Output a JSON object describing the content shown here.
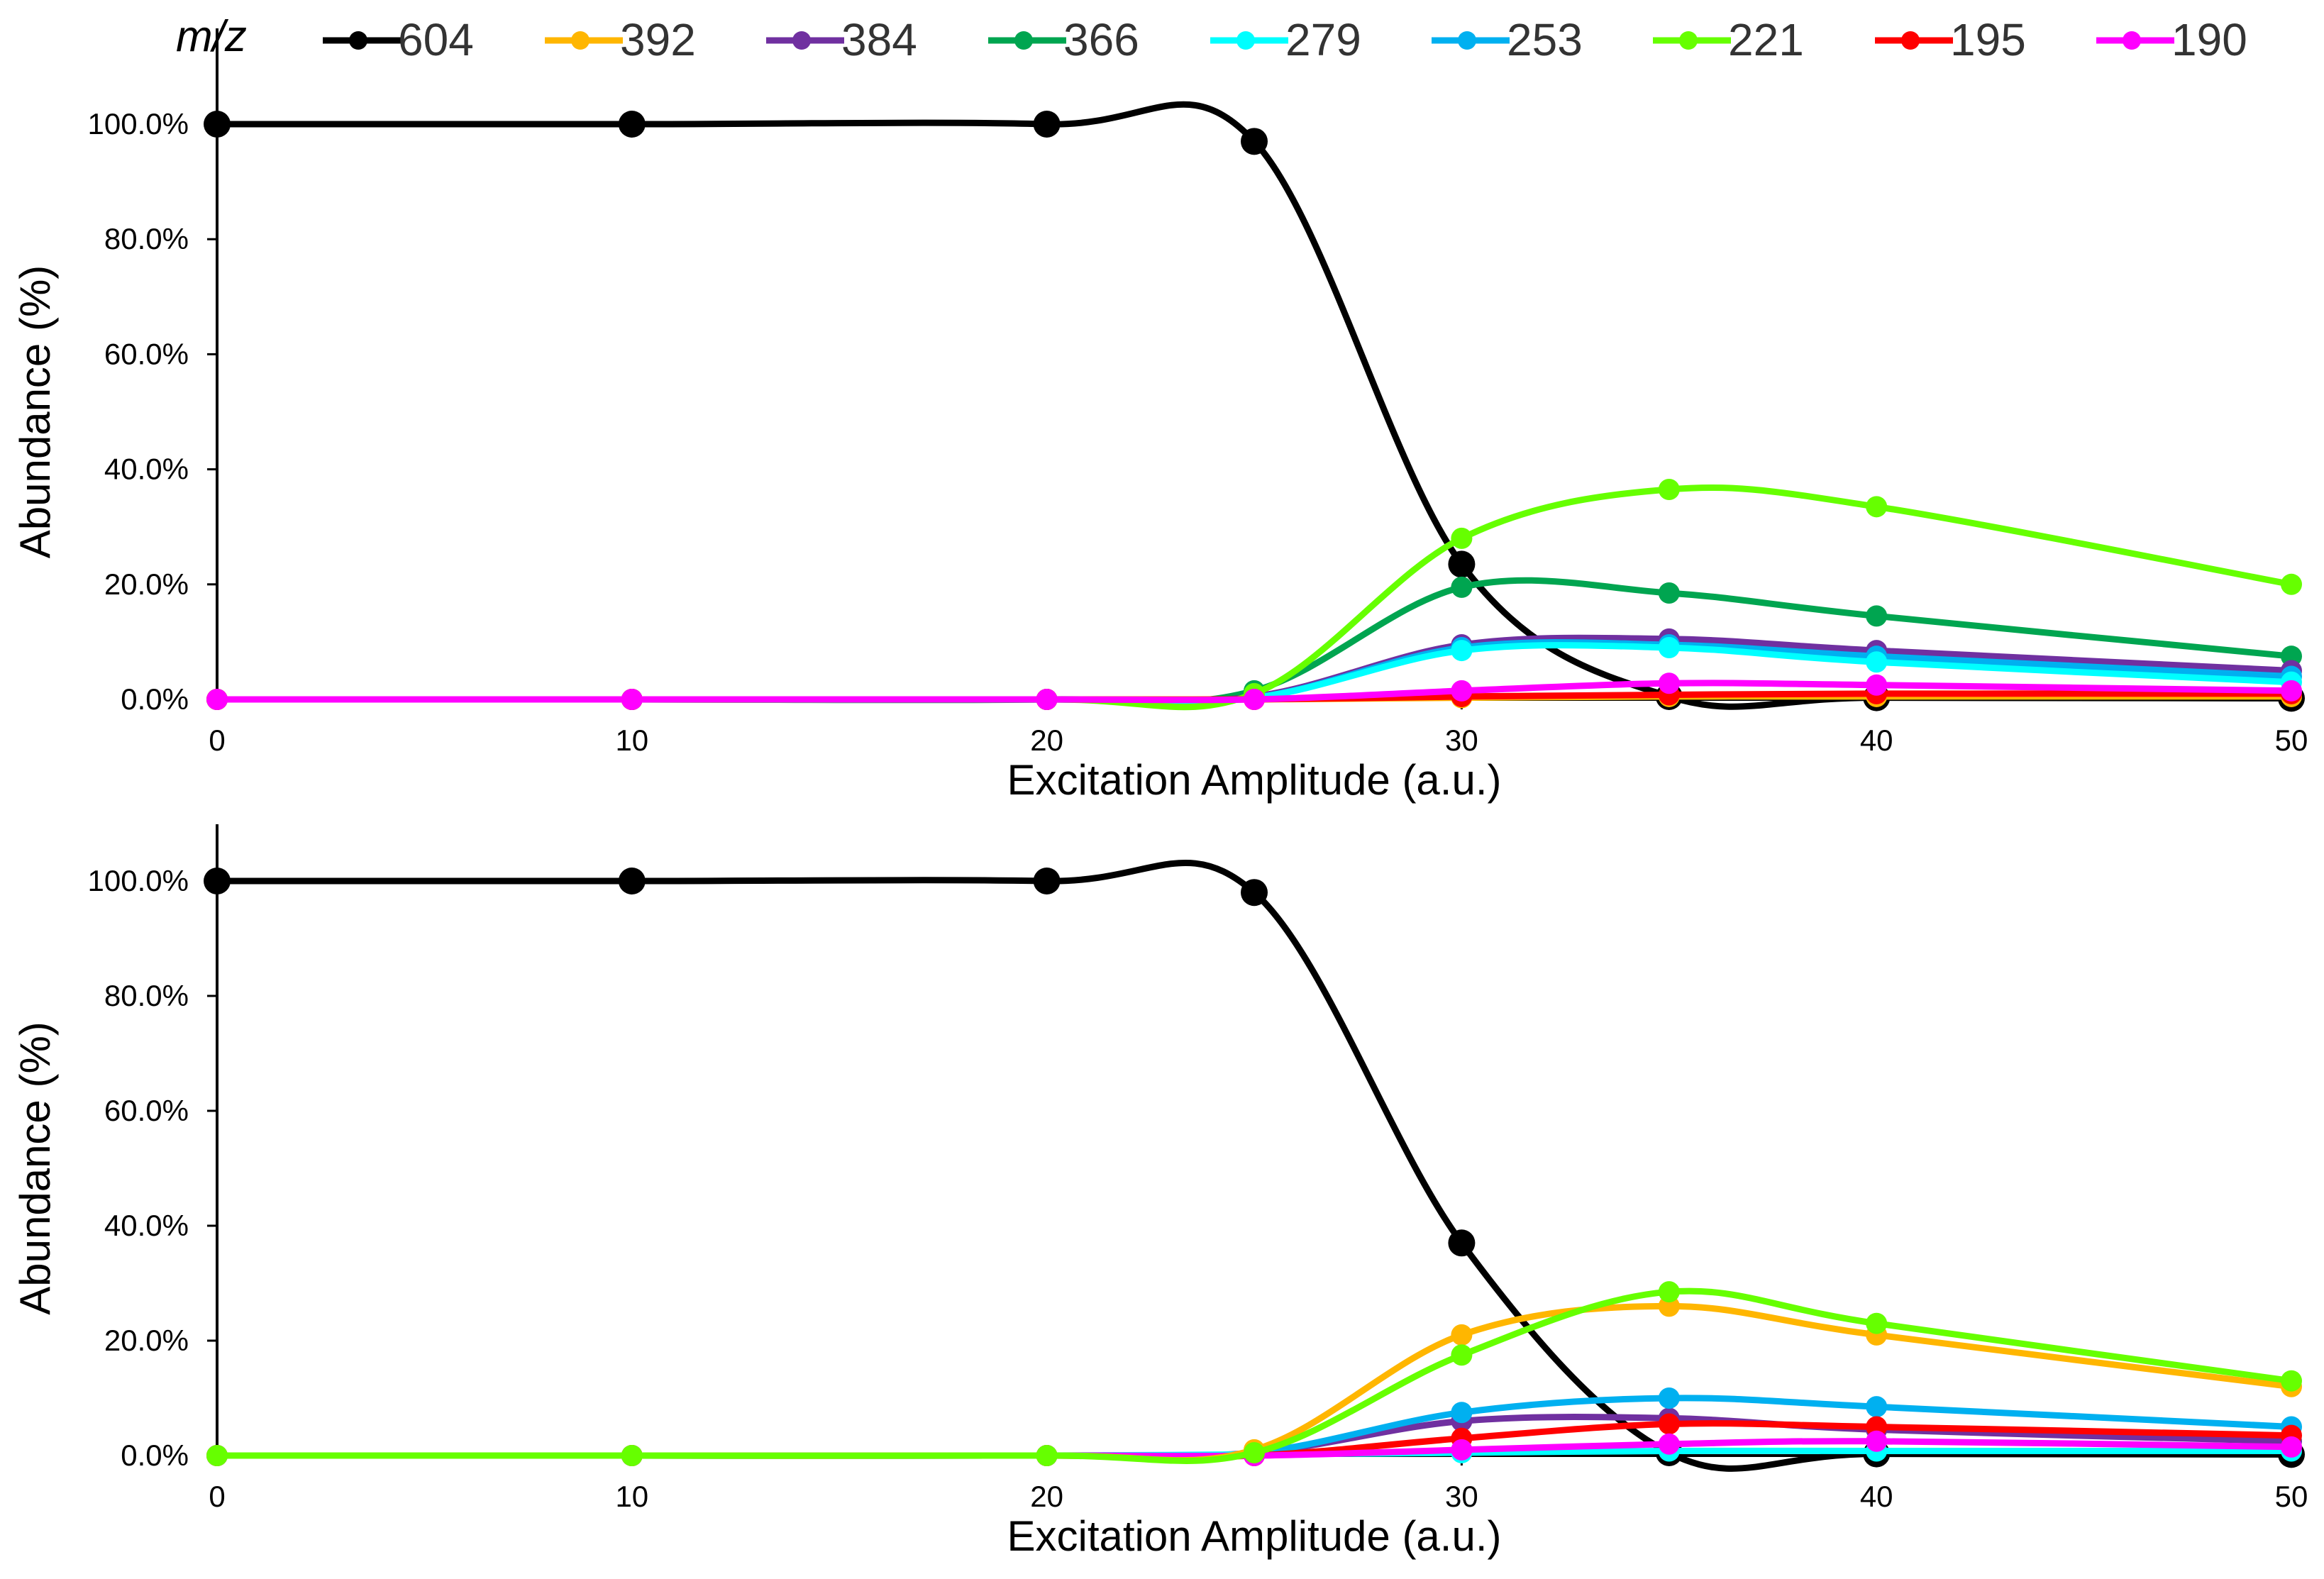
{
  "legend": {
    "title": "m/z",
    "placement": "top",
    "entries": [
      {
        "label": "604",
        "color": "#000000"
      },
      {
        "label": "392",
        "color": "#ffb600"
      },
      {
        "label": "384",
        "color": "#7030a0"
      },
      {
        "label": "366",
        "color": "#00a550"
      },
      {
        "label": "279",
        "color": "#00ffff"
      },
      {
        "label": "253",
        "color": "#00b0f0"
      },
      {
        "label": "221",
        "color": "#66ff00"
      },
      {
        "label": "195",
        "color": "#ff0000"
      },
      {
        "label": "190",
        "color": "#ff00ff"
      }
    ]
  },
  "chart_data": [
    {
      "type": "line",
      "title": "",
      "xlabel": "Excitation Amplitude (a.u.)",
      "ylabel": "Abundance (%)",
      "x": [
        0,
        10,
        20,
        25,
        30,
        35,
        40,
        50
      ],
      "xticks": [
        "0",
        "10",
        "20",
        "30",
        "40",
        "50"
      ],
      "xtick_values": [
        0,
        10,
        20,
        30,
        40,
        50
      ],
      "yticks": [
        "0.0%",
        "20.0%",
        "40.0%",
        "60.0%",
        "80.0%",
        "100.0%"
      ],
      "ytick_values": [
        0,
        20,
        40,
        60,
        80,
        100
      ],
      "xlim": [
        0,
        50
      ],
      "ylim": [
        0,
        110
      ],
      "grid": false,
      "series": [
        {
          "name": "604",
          "color": "#000000",
          "values": [
            100,
            100,
            100,
            97,
            23.5,
            0.5,
            0.3,
            0.2
          ]
        },
        {
          "name": "366",
          "color": "#00a550",
          "values": [
            0,
            0,
            0,
            1.5,
            19.5,
            18.5,
            14.5,
            7.5
          ]
        },
        {
          "name": "384",
          "color": "#7030a0",
          "values": [
            0,
            0,
            0,
            0.5,
            9.5,
            10.5,
            8.5,
            5
          ]
        },
        {
          "name": "253",
          "color": "#00b0f0",
          "values": [
            0,
            0,
            0,
            0.3,
            9,
            9.5,
            7.5,
            4
          ]
        },
        {
          "name": "279",
          "color": "#00ffff",
          "values": [
            0,
            0,
            0,
            0.3,
            8.5,
            9,
            6.5,
            3
          ]
        },
        {
          "name": "221",
          "color": "#66ff00",
          "values": [
            0,
            0,
            0,
            1,
            28,
            36.5,
            33.5,
            20
          ]
        },
        {
          "name": "392",
          "color": "#ffb600",
          "values": [
            0,
            0,
            0,
            0,
            0.3,
            0.5,
            0.5,
            0.5
          ]
        },
        {
          "name": "195",
          "color": "#ff0000",
          "values": [
            0,
            0,
            0,
            0,
            0.5,
            0.8,
            1,
            1
          ]
        },
        {
          "name": "190",
          "color": "#ff00ff",
          "values": [
            0,
            0,
            0,
            0,
            1.5,
            2.8,
            2.5,
            1.5
          ]
        }
      ]
    },
    {
      "type": "line",
      "title": "",
      "xlabel": "Excitation Amplitude (a.u.)",
      "ylabel": "Abundance (%)",
      "x": [
        0,
        10,
        20,
        25,
        30,
        35,
        40,
        50
      ],
      "xticks": [
        "0",
        "10",
        "20",
        "30",
        "40",
        "50"
      ],
      "xtick_values": [
        0,
        10,
        20,
        30,
        40,
        50
      ],
      "yticks": [
        "0.0%",
        "20.0%",
        "40.0%",
        "60.0%",
        "80.0%",
        "100.0%"
      ],
      "ytick_values": [
        0,
        20,
        40,
        60,
        80,
        100
      ],
      "xlim": [
        0,
        50
      ],
      "ylim": [
        0,
        110
      ],
      "grid": false,
      "series": [
        {
          "name": "604",
          "color": "#000000",
          "values": [
            100,
            100,
            100,
            98,
            37,
            0.5,
            0.3,
            0.2
          ]
        },
        {
          "name": "384",
          "color": "#7030a0",
          "values": [
            0,
            0,
            0,
            0.5,
            6,
            6.5,
            4.5,
            2.5
          ]
        },
        {
          "name": "253",
          "color": "#00b0f0",
          "values": [
            0,
            0,
            0,
            0.5,
            7.5,
            10,
            8.5,
            5
          ]
        },
        {
          "name": "279",
          "color": "#00ffff",
          "values": [
            0,
            0,
            0,
            0.2,
            0.5,
            0.8,
            0.8,
            0.8
          ]
        },
        {
          "name": "195",
          "color": "#ff0000",
          "values": [
            0,
            0,
            0,
            0,
            3,
            5.5,
            5,
            3.5
          ]
        },
        {
          "name": "190",
          "color": "#ff00ff",
          "values": [
            0,
            0,
            0,
            0,
            1,
            2,
            2.5,
            1.5
          ]
        },
        {
          "name": "392",
          "color": "#ffb600",
          "values": [
            0,
            0,
            0,
            1,
            21,
            26,
            21,
            12
          ]
        },
        {
          "name": "221",
          "color": "#66ff00",
          "values": [
            0,
            0,
            0,
            0.5,
            17.5,
            28.5,
            23,
            13
          ]
        }
      ]
    }
  ]
}
